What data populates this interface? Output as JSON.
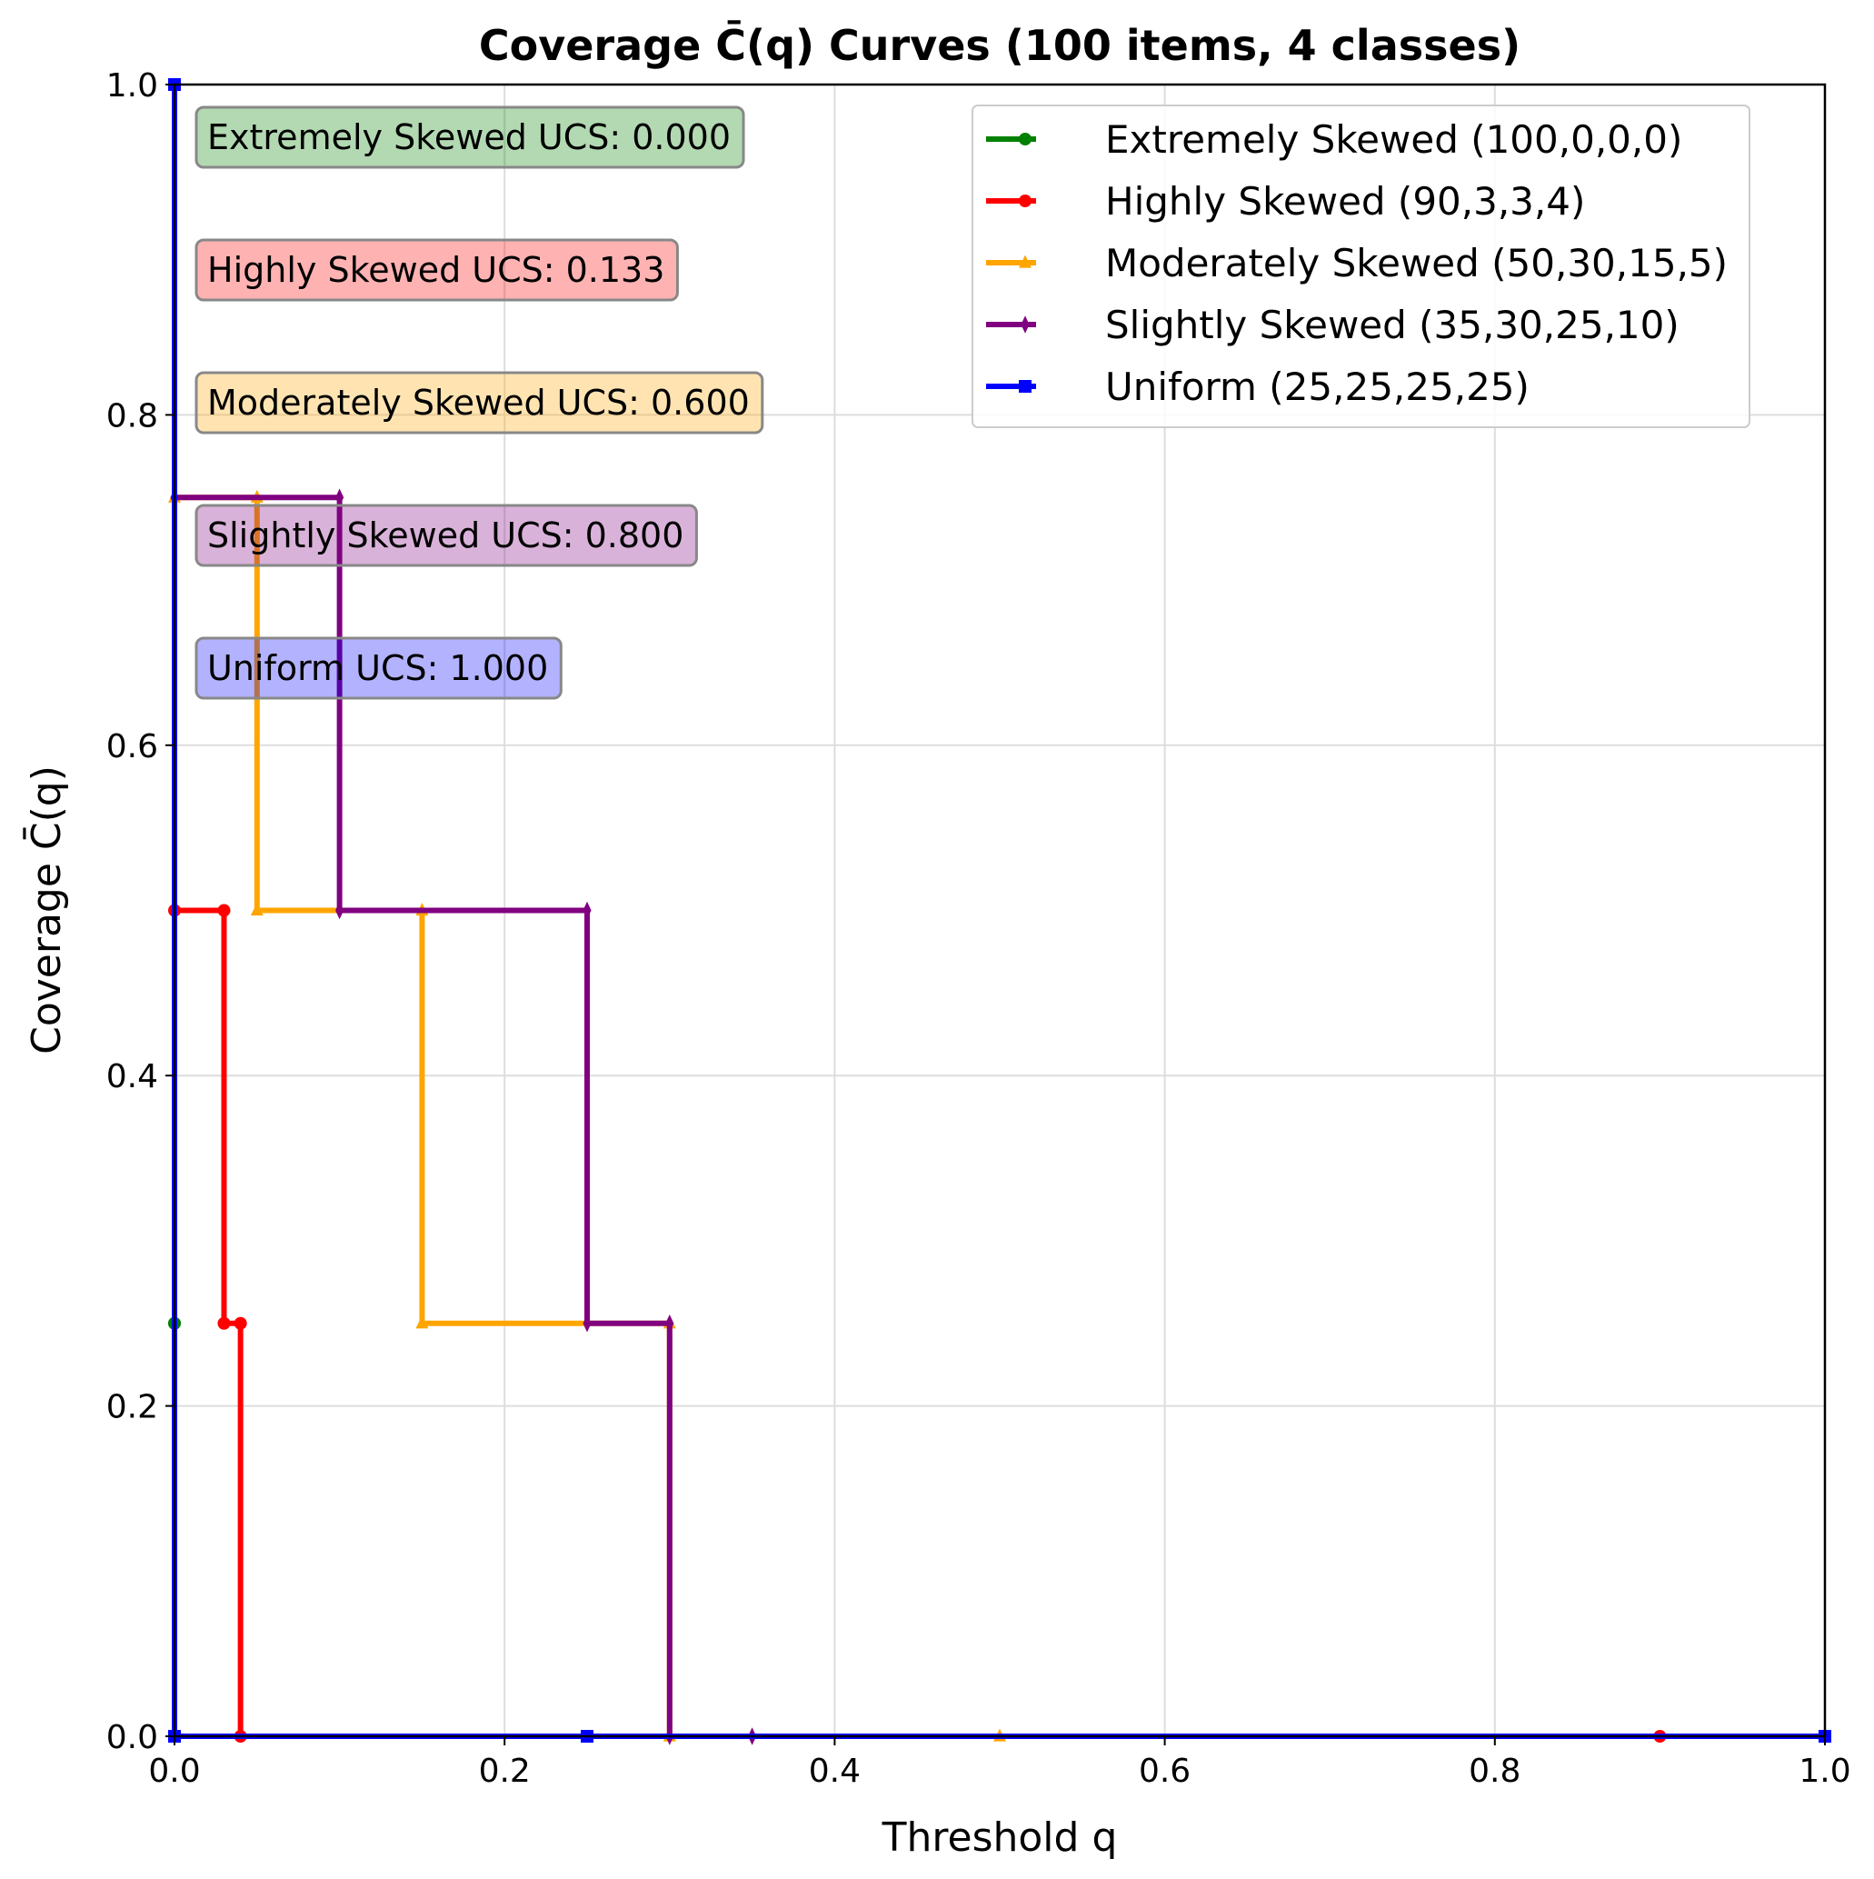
{
  "chart_data": {
    "type": "line",
    "title": "Coverage C̄(q) Curves (100 items, 4 classes)",
    "xlabel": "Threshold q",
    "ylabel": "Coverage C̄(q)",
    "xlim": [
      0,
      1
    ],
    "ylim": [
      0,
      1
    ],
    "x_ticks": [
      "0.0",
      "0.2",
      "0.4",
      "0.6",
      "0.8",
      "1.0"
    ],
    "y_ticks": [
      "0.0",
      "0.2",
      "0.4",
      "0.6",
      "0.8",
      "1.0"
    ],
    "grid": true,
    "legend_position": "top-right",
    "series": [
      {
        "name": "Extremely Skewed (100,0,0,0)",
        "color": "#008000",
        "marker": "circle",
        "x": [
          0.0,
          0.0,
          0.0,
          1.0
        ],
        "y": [
          0.25,
          0.25,
          0.0,
          0.0
        ]
      },
      {
        "name": "Highly Skewed (90,3,3,4)",
        "color": "#ff0000",
        "marker": "circle",
        "x": [
          0.0,
          0.03,
          0.03,
          0.04,
          0.04,
          0.9,
          1.0
        ],
        "y": [
          0.5,
          0.5,
          0.25,
          0.25,
          0.0,
          0.0,
          0.0
        ]
      },
      {
        "name": "Moderately Skewed (50,30,15,5)",
        "color": "#ffa500",
        "marker": "triangle",
        "x": [
          0.0,
          0.05,
          0.05,
          0.15,
          0.15,
          0.3,
          0.3,
          0.5,
          1.0
        ],
        "y": [
          0.75,
          0.75,
          0.5,
          0.5,
          0.25,
          0.25,
          0.0,
          0.0,
          0.0
        ]
      },
      {
        "name": "Slightly Skewed (35,30,25,10)",
        "color": "#800080",
        "marker": "diamond",
        "x": [
          0.0,
          0.1,
          0.1,
          0.25,
          0.25,
          0.3,
          0.3,
          0.35,
          1.0
        ],
        "y": [
          0.75,
          0.75,
          0.5,
          0.5,
          0.25,
          0.25,
          0.0,
          0.0,
          0.0
        ]
      },
      {
        "name": "Uniform (25,25,25,25)",
        "color": "#0000ff",
        "marker": "square",
        "x": [
          0.0,
          0.0,
          0.25,
          1.0
        ],
        "y": [
          1.0,
          0.0,
          0.0,
          0.0
        ]
      }
    ],
    "annotations": [
      {
        "text": "Extremely Skewed UCS: 0.000",
        "color": "#008000"
      },
      {
        "text": "Highly Skewed UCS: 0.133",
        "color": "#ff0000"
      },
      {
        "text": "Moderately Skewed UCS: 0.600",
        "color": "#ffa500"
      },
      {
        "text": "Slightly Skewed UCS: 0.800",
        "color": "#800080"
      },
      {
        "text": "Uniform UCS: 1.000",
        "color": "#0000ff"
      }
    ]
  }
}
